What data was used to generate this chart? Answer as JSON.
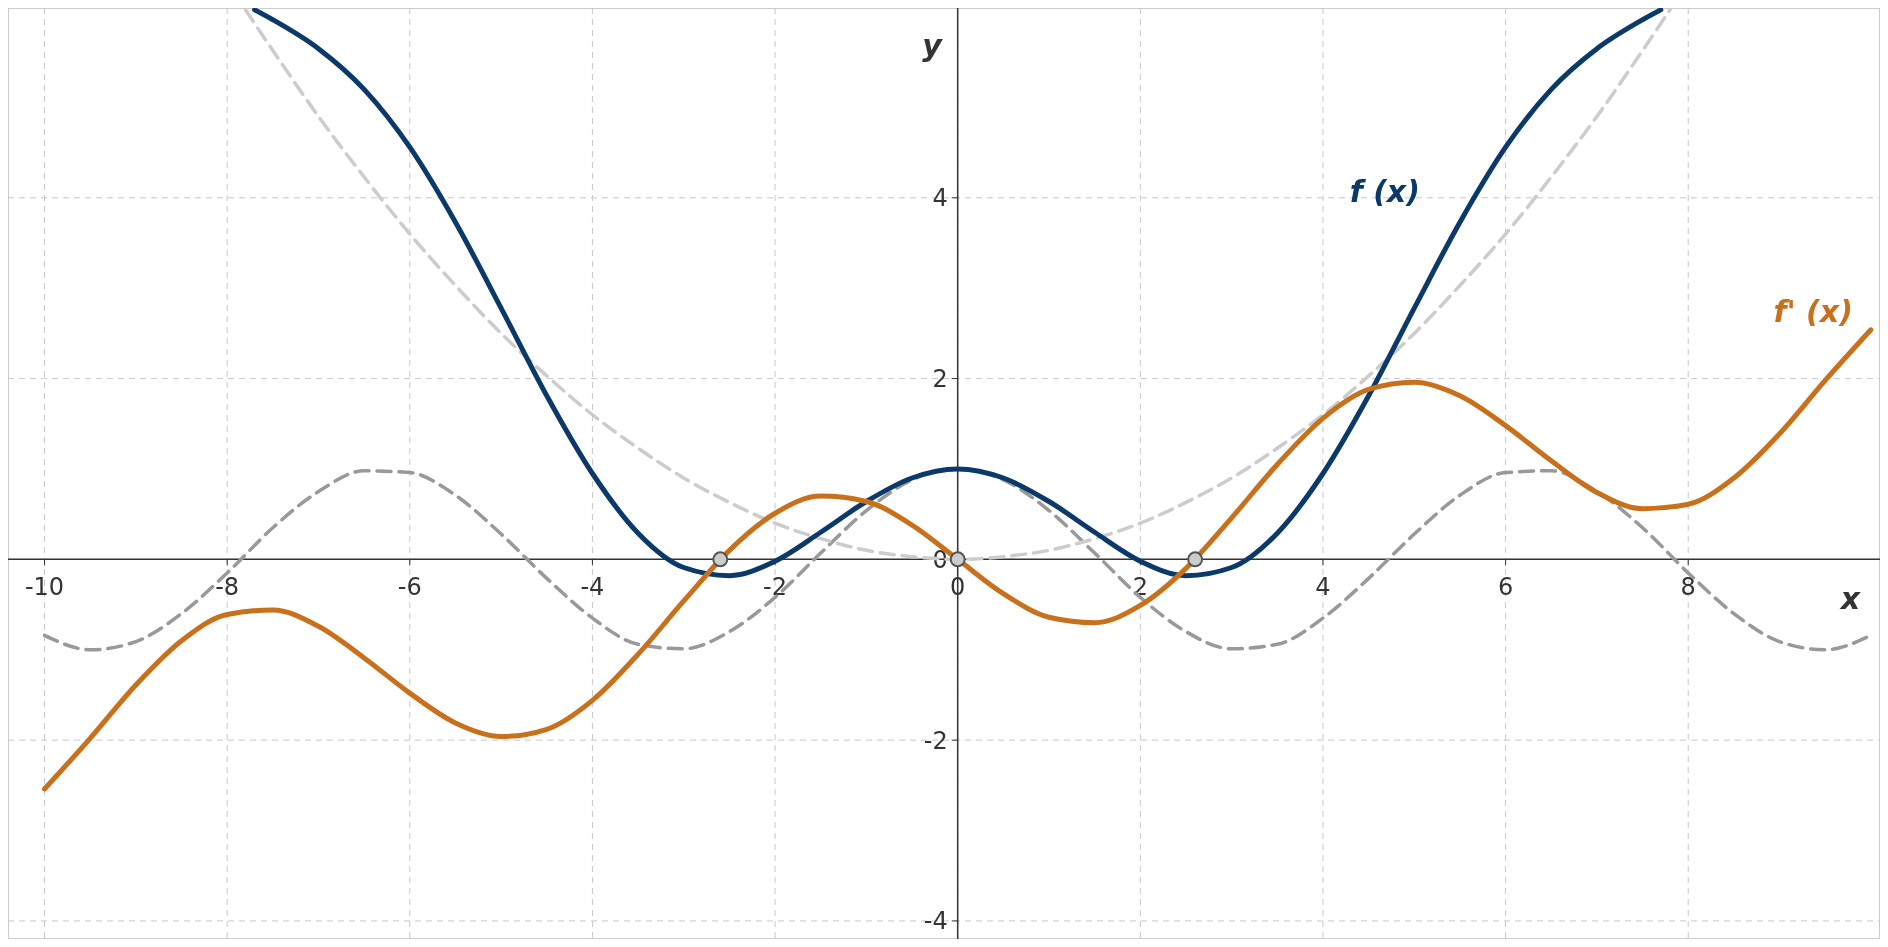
{
  "chart_data": {
    "type": "line",
    "xlabel": "x",
    "ylabel": "y",
    "xlim": [
      -10.4,
      10.1
    ],
    "ylim": [
      -4.2,
      6.1
    ],
    "xticks": [
      -10,
      -8,
      -6,
      -4,
      -2,
      0,
      2,
      4,
      6,
      8
    ],
    "yticks": [
      -4,
      -2,
      0,
      2,
      4
    ],
    "grid": true,
    "series": [
      {
        "color": "#999999",
        "line_style": "dashed",
        "x": [
          -10,
          -9.5,
          -9,
          -8.5,
          -8,
          -7.5,
          -7,
          -6.5,
          -6,
          -5.5,
          -5,
          -4.5,
          -4,
          -3.5,
          -3,
          -2.5,
          -2,
          -1.5,
          -1,
          -0.5,
          0,
          0.5,
          1,
          1.5,
          2,
          2.5,
          3,
          3.5,
          4,
          4.5,
          5,
          5.5,
          6,
          6.5,
          7,
          7.5,
          8,
          8.5,
          9,
          9.5,
          10
        ],
        "values": [
          -0.84,
          -1,
          -0.91,
          -0.6,
          -0.15,
          0.35,
          0.75,
          0.98,
          0.96,
          0.71,
          0.28,
          -0.21,
          -0.65,
          -0.94,
          -0.99,
          -0.8,
          -0.42,
          0.07,
          0.54,
          0.88,
          1,
          0.88,
          0.54,
          0.07,
          -0.42,
          -0.8,
          -0.99,
          -0.94,
          -0.65,
          -0.21,
          0.28,
          0.71,
          0.96,
          0.98,
          0.75,
          0.35,
          -0.15,
          -0.6,
          -0.91,
          -1,
          -0.84
        ]
      },
      {
        "color": "#cccccc",
        "line_style": "dashed",
        "x": [
          -7.8,
          -7.5,
          -7,
          -6.5,
          -6,
          -5.5,
          -5,
          -4.5,
          -4,
          -3.5,
          -3,
          -2.5,
          -2,
          -1.5,
          -1,
          -0.5,
          0,
          0.5,
          1,
          1.5,
          2,
          2.5,
          3,
          3.5,
          4,
          4.5,
          5,
          5.5,
          6,
          6.5,
          7,
          7.5,
          7.8
        ],
        "values": [
          6.08,
          5.63,
          4.9,
          4.23,
          3.6,
          3.03,
          2.5,
          2.03,
          1.6,
          1.23,
          0.9,
          0.63,
          0.4,
          0.23,
          0.1,
          0.03,
          0,
          0.03,
          0.1,
          0.23,
          0.4,
          0.63,
          0.9,
          1.23,
          1.6,
          2.03,
          2.5,
          3.03,
          3.6,
          4.23,
          4.9,
          5.63,
          6.08
        ]
      },
      {
        "name": "f (x)",
        "color": "#0b3a6a",
        "x": [
          -7.7,
          -7.5,
          -7,
          -6.5,
          -6,
          -5.5,
          -5,
          -4.5,
          -4,
          -3.5,
          -3,
          -2.5,
          -2,
          -1.5,
          -1,
          -0.5,
          0,
          0.5,
          1,
          1.5,
          2,
          2.5,
          3,
          3.5,
          4,
          4.5,
          5,
          5.5,
          6,
          6.5,
          7,
          7.5,
          7.7
        ],
        "values": [
          6.08,
          5.97,
          5.65,
          5.2,
          4.56,
          3.73,
          2.78,
          1.81,
          0.95,
          0.29,
          -0.09,
          -0.18,
          -0.02,
          0.3,
          0.64,
          0.9,
          1,
          0.9,
          0.64,
          0.3,
          -0.02,
          -0.18,
          -0.09,
          0.29,
          0.95,
          1.81,
          2.78,
          3.73,
          4.56,
          5.2,
          5.65,
          5.97,
          6.08
        ]
      },
      {
        "name": "f' (x)",
        "color": "#c8701b",
        "x": [
          -10,
          -9.5,
          -9,
          -8.5,
          -8,
          -7.5,
          -7,
          -6.5,
          -6,
          -5.5,
          -5,
          -4.5,
          -4,
          -3.5,
          -3,
          -2.5,
          -2,
          -1.5,
          -1,
          -0.5,
          0,
          0.5,
          1,
          1.5,
          2,
          2.5,
          3,
          3.5,
          4,
          4.5,
          5,
          5.5,
          6,
          6.5,
          7,
          7.5,
          8,
          8.5,
          9,
          9.5,
          10
        ],
        "values": [
          -2.54,
          -1.98,
          -1.39,
          -0.9,
          -0.61,
          -0.56,
          -0.74,
          -1.09,
          -1.48,
          -1.81,
          -1.96,
          -1.88,
          -1.56,
          -1.05,
          -0.46,
          0.1,
          0.51,
          0.7,
          0.64,
          0.38,
          0,
          -0.38,
          -0.64,
          -0.7,
          -0.51,
          -0.1,
          0.46,
          1.05,
          1.56,
          1.88,
          1.96,
          1.81,
          1.48,
          1.09,
          0.74,
          0.56,
          0.61,
          0.9,
          1.39,
          1.98,
          2.54
        ]
      },
      {
        "type": "scatter",
        "marker": "circle",
        "color": "#cccccc",
        "x": [
          -2.6,
          0,
          2.6
        ],
        "values": [
          0,
          0,
          0
        ]
      }
    ]
  }
}
